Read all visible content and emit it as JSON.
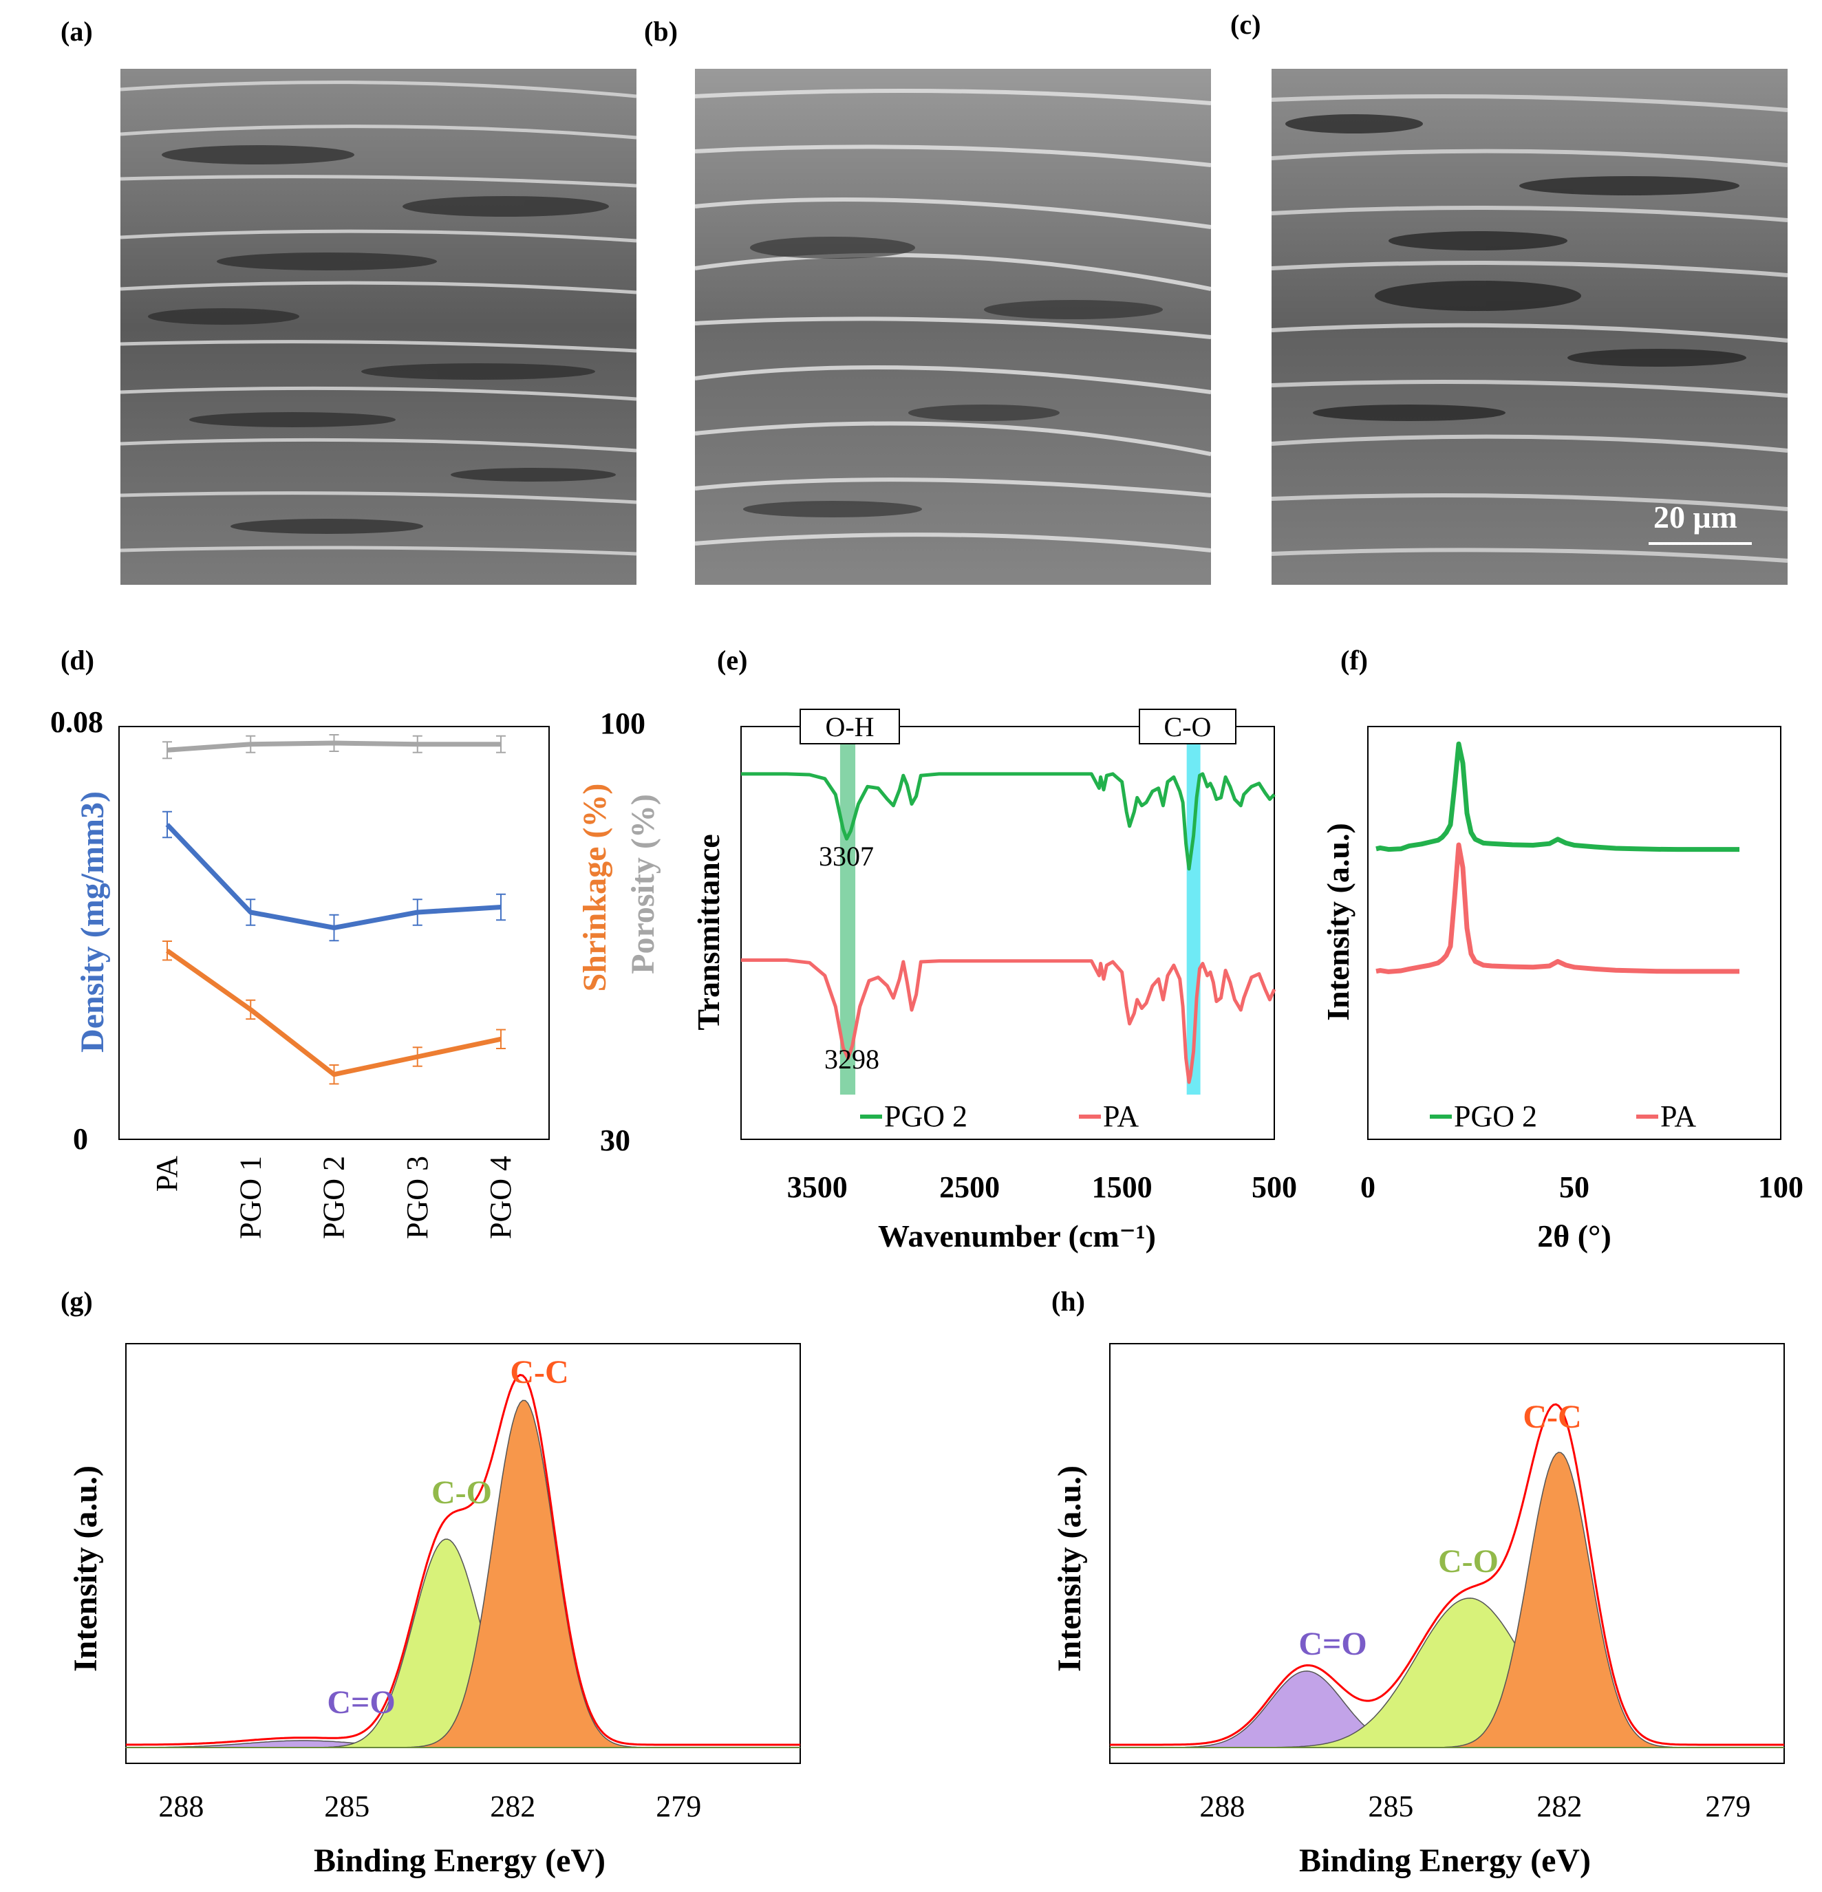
{
  "panel_labels": {
    "a": "(a)",
    "b": "(b)",
    "c": "(c)",
    "d": "(d)",
    "e": "(e)",
    "f": "(f)",
    "g": "(g)",
    "h": "(h)"
  },
  "scale_bar": {
    "label": "20 μm"
  },
  "colors": {
    "density": "#4472c4",
    "shrinkage": "#ed7d31",
    "porosity": "#a6a6a6",
    "pgo2": "#22b14c",
    "pa": "#f4686a",
    "oh_band": "#5ec58a",
    "co_band": "#3fe3f2",
    "cc_fill": "#f7974b",
    "co_fill": "#d8f27a",
    "ceo_fill": "#c2a3e8",
    "envelope": "#ff0000",
    "co_label": "#92b94a",
    "ceo_label": "#7a5cc8",
    "cc_label": "#ff5a1f"
  },
  "chart_data": [
    {
      "id": "d",
      "type": "line",
      "categories": [
        "PA",
        "PGO 1",
        "PGO 2",
        "PGO 3",
        "PGO 4"
      ],
      "series": [
        {
          "name": "Density",
          "axis": "left",
          "values": [
            0.061,
            0.044,
            0.041,
            0.044,
            0.045
          ],
          "error": 0.0025
        },
        {
          "name": "Shrinkage",
          "axis": "right",
          "values": [
            62,
            52,
            41,
            44,
            47
          ],
          "error": 1.6
        },
        {
          "name": "Porosity",
          "axis": "right",
          "values": [
            96,
            97,
            97.2,
            97,
            97
          ],
          "error": 1.4
        }
      ],
      "y_left": {
        "label": "Density (mg/mm3)",
        "lim": [
          0,
          0.08
        ],
        "ticks": [
          "0",
          "0.08"
        ]
      },
      "y_right": {
        "label_1": "Shrinkage (%)",
        "label_2": "Porosity (%)",
        "lim": [
          30,
          100
        ],
        "ticks": [
          "30",
          "100"
        ]
      }
    },
    {
      "id": "e",
      "type": "line",
      "xlabel": "Wavenumber (cm⁻¹)",
      "ylabel": "Transmittance",
      "xlim": [
        4000,
        500
      ],
      "xticks": [
        "3500",
        "2500",
        "1500",
        "500"
      ],
      "bands": [
        {
          "label": "O-H",
          "center": 3300,
          "width": 100
        },
        {
          "label": "C-O",
          "center": 1030,
          "width": 90
        }
      ],
      "annotations": [
        "3307",
        "3298"
      ],
      "legend": [
        "PGO 2",
        "PA"
      ],
      "series": [
        {
          "name": "PGO 2",
          "x": [
            4000,
            3700,
            3550,
            3450,
            3380,
            3330,
            3307,
            3280,
            3230,
            3170,
            3100,
            3040,
            3000,
            2960,
            2935,
            2910,
            2880,
            2850,
            2820,
            2700,
            2400,
            2000,
            1700,
            1650,
            1640,
            1620,
            1600,
            1560,
            1500,
            1470,
            1450,
            1420,
            1400,
            1370,
            1340,
            1300,
            1260,
            1230,
            1200,
            1160,
            1120,
            1100,
            1080,
            1060,
            1050,
            1030,
            1010,
            990,
            970,
            940,
            920,
            900,
            880,
            850,
            820,
            790,
            760,
            720,
            700,
            650,
            600,
            560,
            530,
            500
          ],
          "y": [
            0.3,
            0.3,
            0.35,
            0.6,
            1.6,
            3.8,
            4.4,
            3.9,
            2.2,
            1.1,
            1.2,
            1.9,
            2.3,
            1.3,
            0.4,
            1.0,
            2.2,
            1.7,
            0.4,
            0.3,
            0.3,
            0.3,
            0.3,
            1.2,
            0.5,
            1.3,
            0.4,
            0.3,
            0.8,
            2.7,
            3.6,
            2.7,
            1.8,
            2.3,
            2.1,
            1.4,
            1.2,
            2.3,
            0.8,
            0.5,
            1.4,
            2.1,
            4.7,
            6.3,
            5.6,
            4.2,
            1.8,
            0.4,
            0.3,
            1.1,
            0.9,
            1.3,
            1.9,
            1.8,
            0.5,
            1.1,
            1.9,
            2.3,
            1.6,
            1.1,
            0.9,
            1.5,
            1.9,
            1.6
          ]
        },
        {
          "name": "PA",
          "x": [
            4000,
            3700,
            3550,
            3450,
            3380,
            3330,
            3298,
            3270,
            3220,
            3160,
            3100,
            3040,
            3000,
            2960,
            2935,
            2910,
            2880,
            2850,
            2820,
            2700,
            2400,
            2000,
            1700,
            1650,
            1640,
            1620,
            1600,
            1560,
            1500,
            1470,
            1450,
            1420,
            1400,
            1370,
            1340,
            1300,
            1260,
            1230,
            1200,
            1160,
            1120,
            1100,
            1080,
            1060,
            1050,
            1030,
            1010,
            990,
            970,
            940,
            920,
            900,
            880,
            850,
            820,
            790,
            760,
            720,
            700,
            650,
            600,
            560,
            530,
            500
          ],
          "y": [
            0.3,
            0.3,
            0.45,
            1.2,
            3.0,
            5.4,
            6.0,
            5.3,
            3.0,
            1.5,
            1.3,
            1.8,
            2.5,
            1.4,
            0.4,
            1.6,
            3.2,
            2.3,
            0.4,
            0.35,
            0.35,
            0.35,
            0.35,
            1.2,
            0.5,
            1.4,
            0.6,
            0.4,
            1.0,
            3.0,
            4.0,
            3.4,
            2.6,
            3.1,
            2.8,
            1.8,
            1.4,
            2.6,
            1.2,
            0.6,
            1.4,
            3.0,
            6.0,
            7.4,
            7.0,
            5.6,
            2.5,
            0.8,
            0.5,
            1.2,
            1.0,
            1.6,
            2.7,
            2.5,
            0.9,
            1.6,
            2.6,
            3.2,
            2.5,
            1.3,
            1.1,
            2.0,
            2.6,
            2.0
          ]
        }
      ]
    },
    {
      "id": "f",
      "type": "line",
      "xlabel": "2θ (°)",
      "ylabel": "Intensity (a.u.)",
      "xlim": [
        0,
        100
      ],
      "xticks": [
        "0",
        "50",
        "100"
      ],
      "legend": [
        "PGO 2",
        "PA"
      ],
      "series": [
        {
          "name": "PGO 2",
          "x": [
            2,
            3,
            5,
            8,
            10,
            13,
            15,
            17,
            18,
            19,
            20,
            21,
            22,
            23,
            24,
            25,
            26,
            28,
            30,
            35,
            40,
            44,
            46,
            48,
            50,
            55,
            60,
            65,
            70,
            75,
            80,
            85,
            90
          ],
          "y": [
            0.15,
            0.2,
            0.12,
            0.15,
            0.3,
            0.4,
            0.5,
            0.6,
            0.75,
            1.0,
            1.4,
            3.4,
            5.6,
            4.6,
            2.0,
            1.0,
            0.65,
            0.45,
            0.42,
            0.36,
            0.34,
            0.42,
            0.65,
            0.45,
            0.34,
            0.25,
            0.18,
            0.15,
            0.13,
            0.12,
            0.12,
            0.12,
            0.12
          ]
        },
        {
          "name": "PA",
          "x": [
            2,
            3,
            5,
            8,
            10,
            13,
            15,
            17,
            18,
            19,
            20,
            21,
            22,
            23,
            24,
            25,
            26,
            28,
            30,
            35,
            40,
            44,
            46,
            48,
            50,
            55,
            60,
            65,
            70,
            75,
            80,
            85,
            90
          ],
          "y": [
            0.15,
            0.2,
            0.12,
            0.18,
            0.3,
            0.45,
            0.55,
            0.7,
            0.9,
            1.2,
            1.8,
            5.0,
            8.5,
            7.0,
            3.0,
            1.3,
            0.8,
            0.55,
            0.5,
            0.45,
            0.42,
            0.5,
            0.8,
            0.55,
            0.42,
            0.3,
            0.22,
            0.18,
            0.15,
            0.14,
            0.14,
            0.14,
            0.14
          ]
        }
      ]
    },
    {
      "id": "g",
      "type": "area",
      "xlabel": "Binding Energy (eV)",
      "ylabel": "Intensity (a.u.)",
      "xlim": [
        289,
        276.8
      ],
      "xticks": [
        "288",
        "285",
        "282",
        "279"
      ],
      "peaks": [
        {
          "name": "C-C",
          "center": 281.8,
          "height": 1.0,
          "sigma": 0.55
        },
        {
          "name": "C-O",
          "center": 283.2,
          "height": 0.6,
          "sigma": 0.6
        },
        {
          "name": "C=O",
          "center": 285.8,
          "height": 0.02,
          "sigma": 1.0
        }
      ],
      "labels": [
        "C-C",
        "C-O",
        "C=O"
      ]
    },
    {
      "id": "h",
      "type": "area",
      "xlabel": "Binding Energy (eV)",
      "ylabel": "Intensity (a.u.)",
      "xlim": [
        290,
        278
      ],
      "xticks": [
        "288",
        "285",
        "282",
        "279"
      ],
      "peaks": [
        {
          "name": "C-C",
          "center": 282.0,
          "height": 0.85,
          "sigma": 0.55
        },
        {
          "name": "C-O",
          "center": 283.6,
          "height": 0.43,
          "sigma": 0.95
        },
        {
          "name": "C=O",
          "center": 286.5,
          "height": 0.22,
          "sigma": 0.65
        }
      ],
      "labels": [
        "C-C",
        "C-O",
        "C=O"
      ]
    }
  ]
}
